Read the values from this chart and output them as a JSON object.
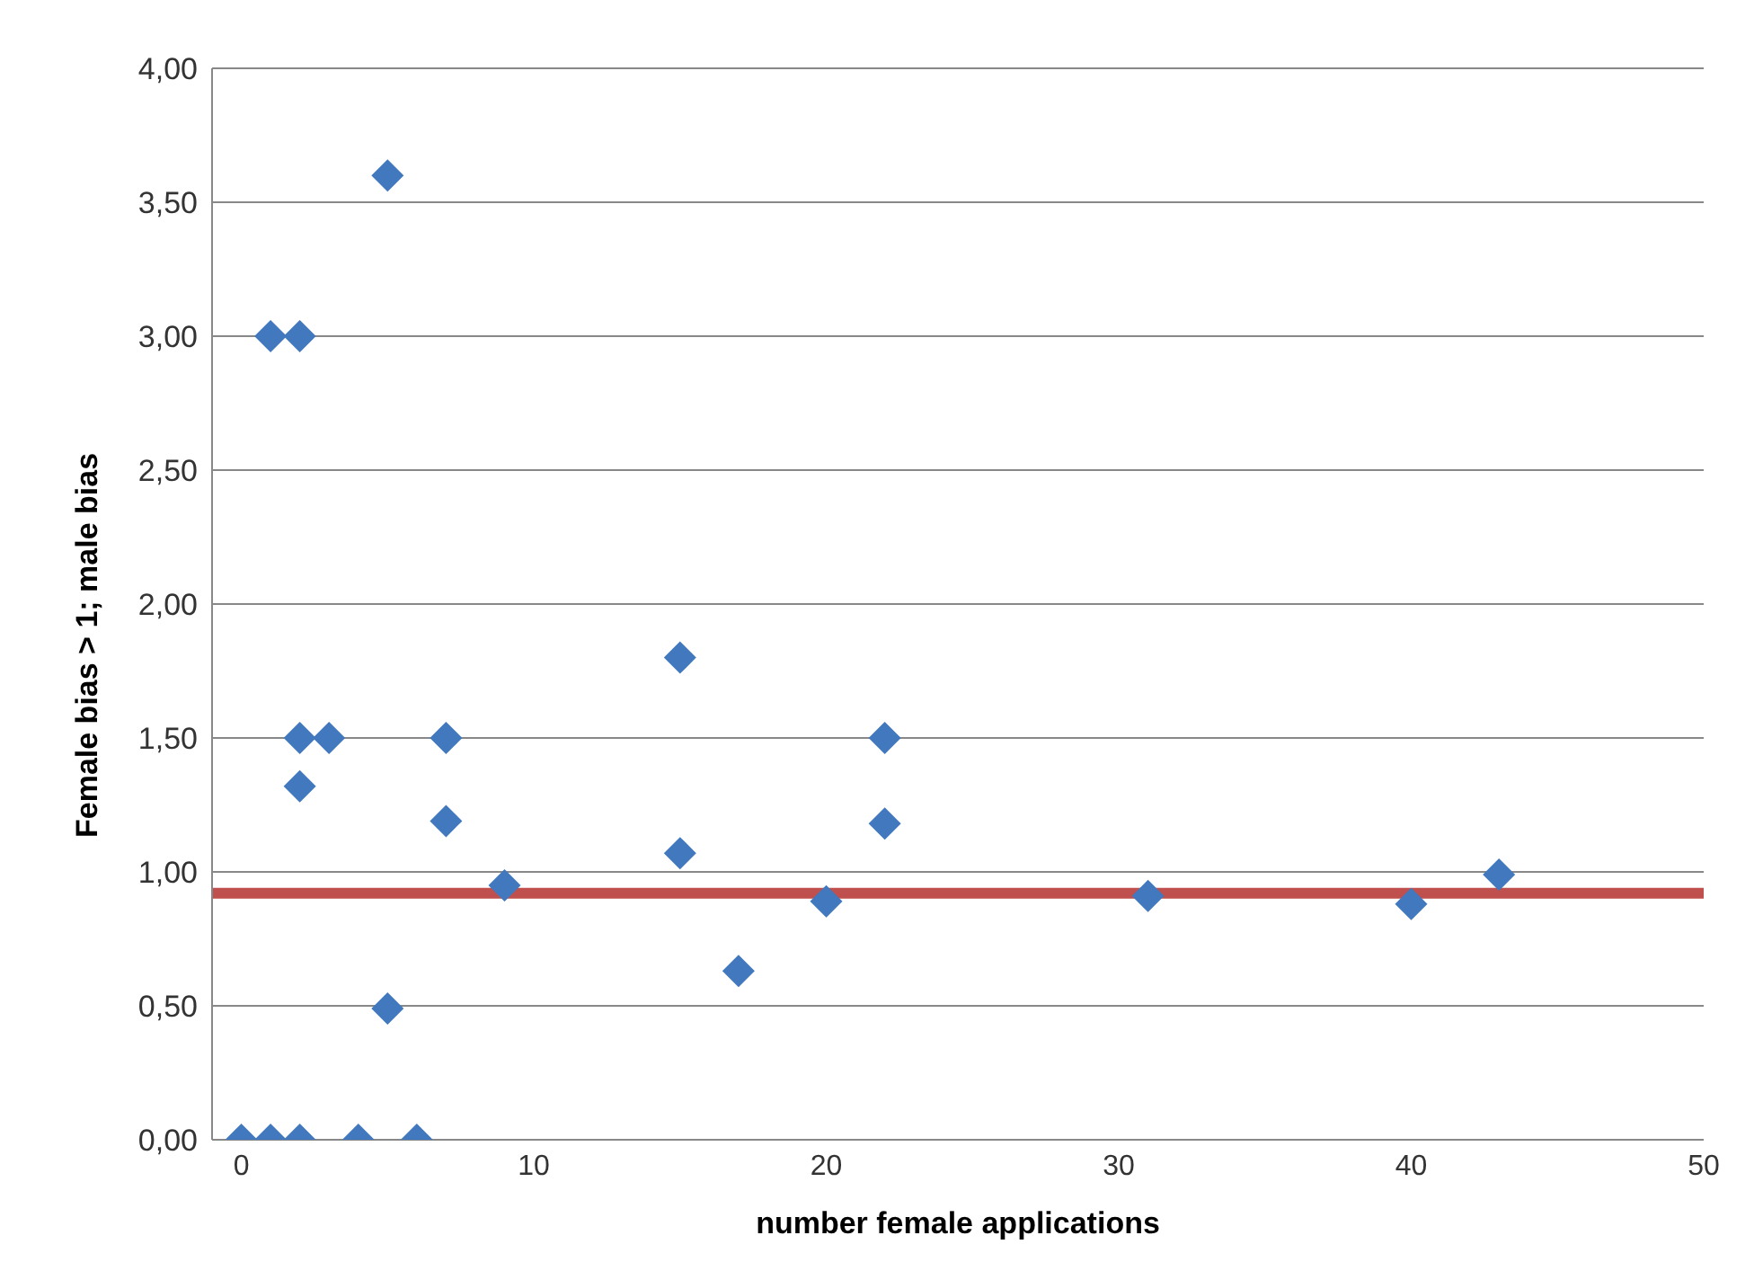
{
  "chart_data": {
    "type": "scatter",
    "xlabel": "number female applications",
    "ylabel": "Female bias  > 1; male bias",
    "marker": "diamond",
    "grid": "y",
    "legend": false,
    "series": [
      {
        "color": "#4178be",
        "x": [
          0,
          1,
          2,
          4,
          6,
          1,
          2,
          5,
          2,
          3,
          2,
          5,
          7,
          7,
          9,
          15,
          15,
          17,
          20,
          22,
          22,
          31,
          40,
          43
        ],
        "values": [
          0,
          0,
          0,
          0,
          0,
          3,
          3,
          3.6,
          1.5,
          1.5,
          1.32,
          0.49,
          1.5,
          1.19,
          0.95,
          1.8,
          1.07,
          0.63,
          0.89,
          1.5,
          1.18,
          0.91,
          0.88,
          0.99
        ]
      }
    ],
    "xlim": [
      -1,
      50
    ],
    "xticks": [
      0,
      10,
      20,
      30,
      40,
      50
    ],
    "ylim": [
      0,
      4
    ],
    "yticks": [
      {
        "value": 0,
        "label": "0,00"
      },
      {
        "value": 0.5,
        "label": "0,50"
      },
      {
        "value": 1,
        "label": "1,00"
      },
      {
        "value": 1.5,
        "label": "1,50"
      },
      {
        "value": 2,
        "label": "2,00"
      },
      {
        "value": 2.5,
        "label": "2,50"
      },
      {
        "value": 3,
        "label": "3,00"
      },
      {
        "value": 3.5,
        "label": "3,50"
      },
      {
        "value": 4,
        "label": "4,00"
      }
    ],
    "ref_lines": [
      {
        "axis": "y",
        "value": 0.92,
        "color": "#c0504d"
      }
    ]
  }
}
